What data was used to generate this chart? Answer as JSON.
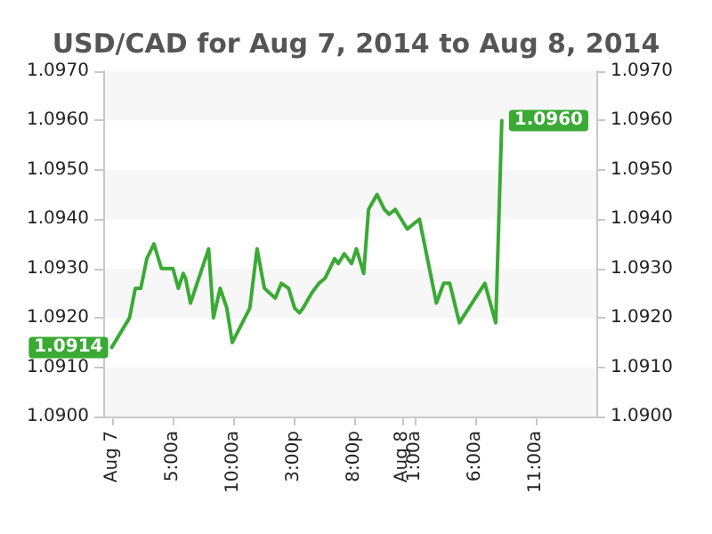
{
  "chart_data": {
    "type": "line",
    "title": "USD/CAD for Aug 7, 2014 to Aug 8, 2014",
    "x": [
      "2014-08-07T00:00",
      "2014-08-07T01:28",
      "2014-08-07T01:57",
      "2014-08-07T02:24",
      "2014-08-07T02:54",
      "2014-08-07T03:29",
      "2014-08-07T04:06",
      "2014-08-07T04:34",
      "2014-08-07T05:03",
      "2014-08-07T05:30",
      "2014-08-07T05:54",
      "2014-08-07T06:06",
      "2014-08-07T06:30",
      "2014-08-07T08:00",
      "2014-08-07T08:24",
      "2014-08-07T08:57",
      "2014-08-07T09:30",
      "2014-08-07T09:57",
      "2014-08-07T11:24",
      "2014-08-07T12:00",
      "2014-08-07T12:36",
      "2014-08-07T13:30",
      "2014-08-07T14:00",
      "2014-08-07T14:36",
      "2014-08-07T15:06",
      "2014-08-07T15:30",
      "2014-08-07T15:48",
      "2014-08-07T16:30",
      "2014-08-07T17:06",
      "2014-08-07T17:36",
      "2014-08-07T18:24",
      "2014-08-07T18:42",
      "2014-08-07T19:12",
      "2014-08-07T19:48",
      "2014-08-07T20:12",
      "2014-08-07T20:48",
      "2014-08-07T21:12",
      "2014-08-07T21:54",
      "2014-08-07T22:30",
      "2014-08-07T22:54",
      "2014-08-07T23:24",
      "2014-08-08T00:24",
      "2014-08-08T01:24",
      "2014-08-08T02:48",
      "2014-08-08T03:24",
      "2014-08-08T03:54",
      "2014-08-08T04:42",
      "2014-08-08T06:48",
      "2014-08-08T07:42",
      "2014-08-08T08:12"
    ],
    "series": [
      {
        "color": "#3aaa35",
        "values": [
          1.0914,
          1.092,
          1.0926,
          1.0926,
          1.0932,
          1.0935,
          1.093,
          1.093,
          1.093,
          1.0926,
          1.0929,
          1.0928,
          1.0923,
          1.0934,
          1.092,
          1.0926,
          1.0922,
          1.0915,
          1.0922,
          1.0934,
          1.0926,
          1.0924,
          1.0927,
          1.0926,
          1.0922,
          1.0921,
          1.0922,
          1.0925,
          1.0927,
          1.0928,
          1.0932,
          1.0931,
          1.0933,
          1.0931,
          1.0934,
          1.0929,
          1.0942,
          1.0945,
          1.0942,
          1.0941,
          1.0942,
          1.0938,
          1.094,
          1.0923,
          1.0927,
          1.0927,
          1.0919,
          1.0927,
          1.0919,
          1.096
        ],
        "value_labels": [
          "1.0914",
          null,
          null,
          null,
          null,
          null,
          null,
          null,
          null,
          null,
          null,
          null,
          null,
          null,
          null,
          null,
          null,
          null,
          null,
          null,
          null,
          null,
          null,
          null,
          null,
          null,
          null,
          null,
          null,
          null,
          null,
          null,
          null,
          null,
          null,
          null,
          null,
          null,
          null,
          null,
          null,
          null,
          null,
          null,
          null,
          null,
          null,
          null,
          null,
          "1.0960"
        ]
      }
    ],
    "xlim": [
      "2014-08-06T23:18",
      "2014-08-08T16:00"
    ],
    "xticks": [
      {
        "value": "2014-08-07T00:00",
        "label": "Aug 7"
      },
      {
        "value": "2014-08-07T05:00",
        "label": "5:00a"
      },
      {
        "value": "2014-08-07T10:00",
        "label": "10:00a"
      },
      {
        "value": "2014-08-07T15:00",
        "label": "3:00p"
      },
      {
        "value": "2014-08-07T20:00",
        "label": "8:00p"
      },
      {
        "value": "2014-08-08T00:00",
        "label": "Aug 8"
      },
      {
        "value": "2014-08-08T01:00",
        "label": "1:00a"
      },
      {
        "value": "2014-08-08T06:00",
        "label": "6:00a"
      },
      {
        "value": "2014-08-08T11:00",
        "label": "11:00a"
      }
    ],
    "ylim": [
      1.09,
      1.097
    ],
    "yticks": [
      {
        "value": 1.09,
        "label": "1.0900"
      },
      {
        "value": 1.091,
        "label": "1.0910"
      },
      {
        "value": 1.092,
        "label": "1.0920"
      },
      {
        "value": 1.093,
        "label": "1.0930"
      },
      {
        "value": 1.094,
        "label": "1.0940"
      },
      {
        "value": 1.095,
        "label": "1.0950"
      },
      {
        "value": 1.096,
        "label": "1.0960"
      },
      {
        "value": 1.097,
        "label": "1.0970"
      }
    ],
    "y2lim": [
      1.09,
      1.097
    ],
    "y2ticks": [
      {
        "value": 1.09,
        "label": "1.0900"
      },
      {
        "value": 1.091,
        "label": "1.0910"
      },
      {
        "value": 1.092,
        "label": "1.0920"
      },
      {
        "value": 1.093,
        "label": "1.0930"
      },
      {
        "value": 1.094,
        "label": "1.0940"
      },
      {
        "value": 1.095,
        "label": "1.0950"
      },
      {
        "value": 1.096,
        "label": "1.0960"
      },
      {
        "value": 1.097,
        "label": "1.0970"
      }
    ],
    "marker": "none",
    "line_style": "solid"
  }
}
